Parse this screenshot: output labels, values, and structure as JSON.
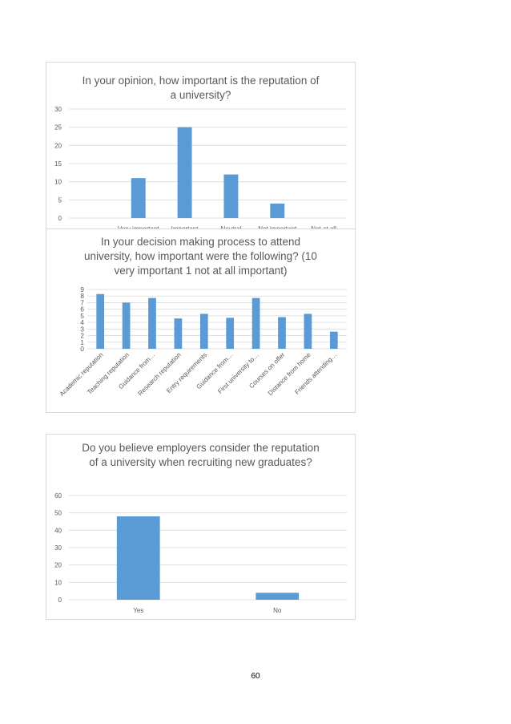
{
  "colors": {
    "bar": "#5b9bd5",
    "grid": "#d9d9d9",
    "tick": "#595959",
    "border": "#d9d9d9"
  },
  "page_number": "60",
  "chart_data": [
    {
      "type": "bar",
      "title": "In your opinion, how important is the reputation of a university?",
      "categories": [
        "",
        "Very important",
        "Important",
        "Neutral",
        "Not important",
        "Not at all"
      ],
      "values": [
        0,
        11,
        25,
        12,
        4,
        0
      ],
      "ylim": [
        0,
        30
      ],
      "yticks": [
        0,
        5,
        10,
        15,
        20,
        25,
        30
      ],
      "grid": true,
      "legend": "none"
    },
    {
      "type": "bar",
      "title": "In your decision making process to attend university, how important were the following? (10 very important 1 not at all important)",
      "categories": [
        "Academic reputation",
        "Teaching reputation",
        "Guidance from…",
        "Research reputation",
        "Entry requirements",
        "Guidance from…",
        "First university to…",
        "Courses on offer",
        "Distance from home",
        "Friends attending…"
      ],
      "values": [
        8.3,
        7.0,
        7.7,
        4.6,
        5.3,
        4.7,
        7.7,
        4.8,
        5.3,
        2.6
      ],
      "ylim": [
        0,
        9
      ],
      "yticks": [
        0,
        1,
        2,
        3,
        4,
        5,
        6,
        7,
        8,
        9
      ],
      "grid": true,
      "legend": "none"
    },
    {
      "type": "bar",
      "title": "Do you believe employers consider the reputation of a university when recruiting new graduates?",
      "categories": [
        "Yes",
        "No"
      ],
      "values": [
        48,
        4
      ],
      "ylim": [
        0,
        60
      ],
      "yticks": [
        0,
        10,
        20,
        30,
        40,
        50,
        60
      ],
      "grid": true,
      "legend": "none"
    }
  ]
}
